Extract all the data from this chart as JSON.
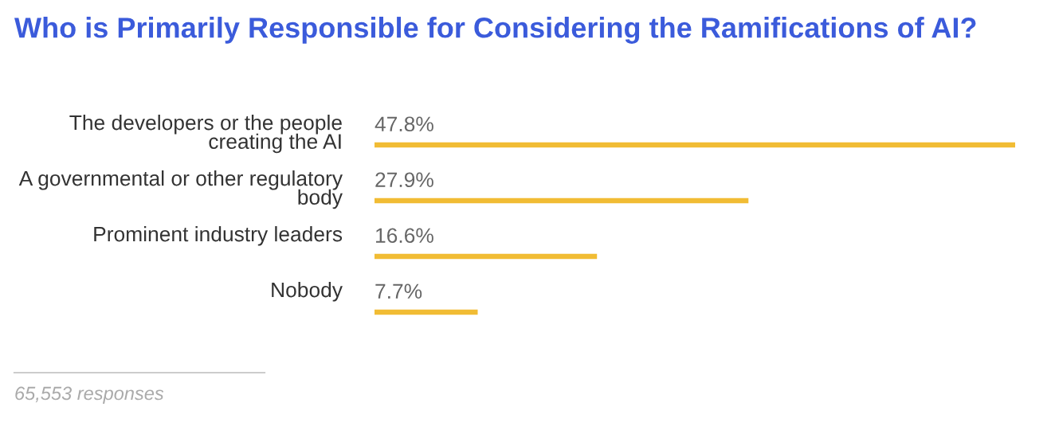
{
  "chart_data": {
    "type": "bar",
    "orientation": "horizontal",
    "title": "Who is Primarily Responsible for Considering the Ramifications of AI?",
    "categories": [
      "The developers or the people\ncreating the AI",
      "A governmental or other regulatory\nbody",
      "Prominent industry leaders",
      "Nobody"
    ],
    "values": [
      47.8,
      27.9,
      16.6,
      7.7
    ],
    "value_labels": [
      "47.8%",
      "27.9%",
      "16.6%",
      "7.7%"
    ],
    "color": "#f1bc34",
    "annotations": [
      "65,553 responses"
    ]
  }
}
